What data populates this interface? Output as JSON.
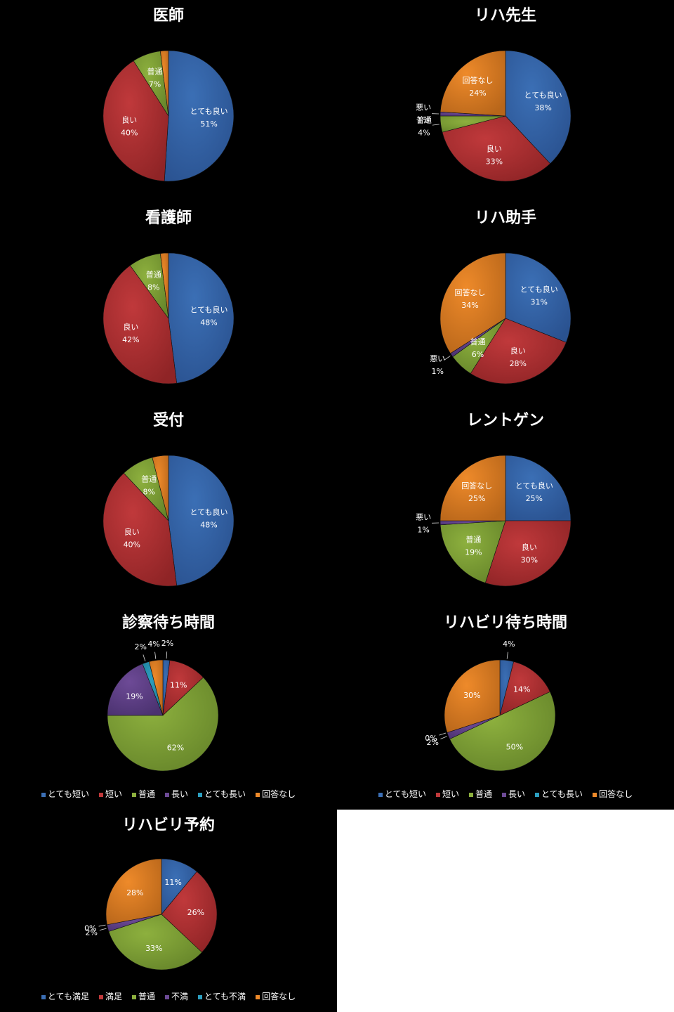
{
  "colors": {
    "blue": "#3b6fb5",
    "red": "#c0393b",
    "green": "#8db03e",
    "purple": "#6d4a96",
    "cyan": "#2c9fc0",
    "orange": "#ee8a2a",
    "background": "#000000",
    "blank_area": "#ffffff"
  },
  "chart_data": [
    {
      "type": "pie",
      "title": "医師",
      "slices": [
        {
          "label": "とても良い",
          "value": 51,
          "display": "51%",
          "color": "blue"
        },
        {
          "label": "良い",
          "value": 40,
          "display": "40%",
          "color": "red"
        },
        {
          "label": "普通",
          "value": 7,
          "display": "7%",
          "color": "green"
        },
        {
          "label": "",
          "value": 2,
          "display": "",
          "color": "orange"
        }
      ]
    },
    {
      "type": "pie",
      "title": "リハ先生",
      "slices": [
        {
          "label": "とても良い",
          "value": 38,
          "display": "38%",
          "color": "blue"
        },
        {
          "label": "良い",
          "value": 33,
          "display": "33%",
          "color": "red"
        },
        {
          "label": "普通",
          "value": 4,
          "display": "4%",
          "color": "green"
        },
        {
          "label": "悪い",
          "value": 1,
          "display": "1%",
          "color": "purple"
        },
        {
          "label": "回答なし",
          "value": 24,
          "display": "24%",
          "color": "orange"
        }
      ]
    },
    {
      "type": "pie",
      "title": "看護師",
      "slices": [
        {
          "label": "とても良い",
          "value": 48,
          "display": "48%",
          "color": "blue"
        },
        {
          "label": "良い",
          "value": 42,
          "display": "42%",
          "color": "red"
        },
        {
          "label": "普通",
          "value": 8,
          "display": "8%",
          "color": "green"
        },
        {
          "label": "",
          "value": 2,
          "display": "",
          "color": "orange"
        }
      ]
    },
    {
      "type": "pie",
      "title": "リハ助手",
      "slices": [
        {
          "label": "とても良い",
          "value": 31,
          "display": "31%",
          "color": "blue"
        },
        {
          "label": "良い",
          "value": 28,
          "display": "28%",
          "color": "red"
        },
        {
          "label": "普通",
          "value": 6,
          "display": "6%",
          "color": "green"
        },
        {
          "label": "悪い",
          "value": 1,
          "display": "1%",
          "color": "purple"
        },
        {
          "label": "回答なし",
          "value": 34,
          "display": "34%",
          "color": "orange"
        }
      ]
    },
    {
      "type": "pie",
      "title": "受付",
      "slices": [
        {
          "label": "とても良い",
          "value": 48,
          "display": "48%",
          "color": "blue"
        },
        {
          "label": "良い",
          "value": 40,
          "display": "40%",
          "color": "red"
        },
        {
          "label": "普通",
          "value": 8,
          "display": "8%",
          "color": "green"
        },
        {
          "label": "",
          "value": 4,
          "display": "",
          "color": "orange"
        }
      ]
    },
    {
      "type": "pie",
      "title": "レントゲン",
      "slices": [
        {
          "label": "とても良い",
          "value": 25,
          "display": "25%",
          "color": "blue"
        },
        {
          "label": "良い",
          "value": 30,
          "display": "30%",
          "color": "red"
        },
        {
          "label": "普通",
          "value": 19,
          "display": "19%",
          "color": "green"
        },
        {
          "label": "悪い",
          "value": 1,
          "display": "1%",
          "color": "purple"
        },
        {
          "label": "回答なし",
          "value": 25,
          "display": "25%",
          "color": "orange"
        }
      ]
    },
    {
      "type": "pie",
      "title": "診察待ち時間",
      "legend": [
        "とても短い",
        "短い",
        "普通",
        "長い",
        "とても長い",
        "回答なし"
      ],
      "slices": [
        {
          "label": "",
          "value": 2,
          "display": "2%",
          "color": "blue"
        },
        {
          "label": "",
          "value": 11,
          "display": "11%",
          "color": "red"
        },
        {
          "label": "",
          "value": 62,
          "display": "62%",
          "color": "green"
        },
        {
          "label": "",
          "value": 19,
          "display": "19%",
          "color": "purple"
        },
        {
          "label": "",
          "value": 2,
          "display": "2%",
          "color": "cyan"
        },
        {
          "label": "",
          "value": 4,
          "display": "4%",
          "color": "orange"
        }
      ]
    },
    {
      "type": "pie",
      "title": "リハビリ待ち時間",
      "legend": [
        "とても短い",
        "短い",
        "普通",
        "長い",
        "とても長い",
        "回答なし"
      ],
      "slices": [
        {
          "label": "",
          "value": 4,
          "display": "4%",
          "color": "blue"
        },
        {
          "label": "",
          "value": 14,
          "display": "14%",
          "color": "red"
        },
        {
          "label": "",
          "value": 50,
          "display": "50%",
          "color": "green"
        },
        {
          "label": "",
          "value": 2,
          "display": "2%",
          "color": "purple"
        },
        {
          "label": "",
          "value": 0,
          "display": "0%",
          "color": "cyan"
        },
        {
          "label": "",
          "value": 30,
          "display": "30%",
          "color": "orange"
        }
      ]
    },
    {
      "type": "pie",
      "title": "リハビリ予約",
      "legend": [
        "とても満足",
        "満足",
        "普通",
        "不満",
        "とても不満",
        "回答なし"
      ],
      "slices": [
        {
          "label": "",
          "value": 11,
          "display": "11%",
          "color": "blue"
        },
        {
          "label": "",
          "value": 26,
          "display": "26%",
          "color": "red"
        },
        {
          "label": "",
          "value": 33,
          "display": "33%",
          "color": "green"
        },
        {
          "label": "",
          "value": 2,
          "display": "2%",
          "color": "purple"
        },
        {
          "label": "",
          "value": 0,
          "display": "0%",
          "color": "cyan"
        },
        {
          "label": "",
          "value": 28,
          "display": "28%",
          "color": "orange"
        }
      ]
    }
  ]
}
